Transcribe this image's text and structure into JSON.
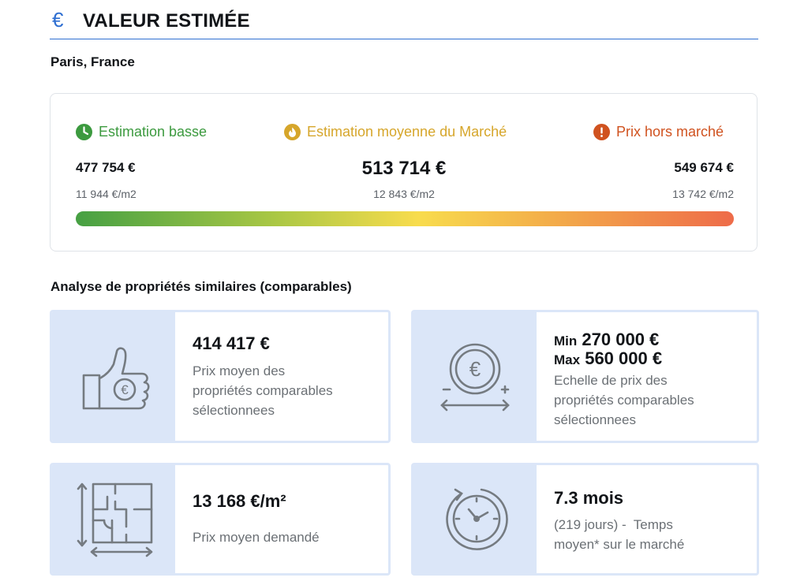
{
  "header": {
    "icon": "euro-icon",
    "icon_glyph": "€",
    "title": "VALEUR ESTIMÉE",
    "accent_color": "#2f6fd1"
  },
  "location": "Paris, France",
  "estimation": {
    "low": {
      "icon": "clock-icon",
      "label": "Estimation basse",
      "price": "477 754 €",
      "per_sqm": "11 944 €/m2",
      "color": "#3c9a3f"
    },
    "mid": {
      "icon": "flame-icon",
      "label": "Estimation moyenne du Marché",
      "price": "513 714 €",
      "per_sqm": "12 843 €/m2",
      "color": "#d6a62b"
    },
    "high": {
      "icon": "alert-icon",
      "label": "Prix hors marché",
      "price": "549 674 €",
      "per_sqm": "13 742 €/m2",
      "color": "#d0521f"
    },
    "gradient_colors": [
      "#46a043",
      "#a9c744",
      "#f8dc4d",
      "#f3ad4a",
      "#ee6b49"
    ]
  },
  "comparables": {
    "title": "Analyse de propriétés similaires (comparables)",
    "cards": [
      {
        "icon": "thumbs-up-euro-icon",
        "value": "414 417 €",
        "description": [
          "Prix moyen des",
          "propriétés comparables",
          "sélectionnees"
        ]
      },
      {
        "icon": "euro-coin-range-icon",
        "min_label": "Min",
        "min_value": "270 000 €",
        "max_label": "Max",
        "max_value": "560 000 €",
        "description": [
          "Echelle de prix des",
          "propriétés comparables",
          "sélectionnees"
        ]
      },
      {
        "icon": "floor-plan-icon",
        "value": "13 168 €/m²",
        "description": [
          "Prix moyen demandé"
        ]
      },
      {
        "icon": "stopwatch-icon",
        "value": "7.3 mois",
        "description": [
          "(219 jours) -  Temps",
          "moyen* sur le marché"
        ]
      }
    ]
  }
}
